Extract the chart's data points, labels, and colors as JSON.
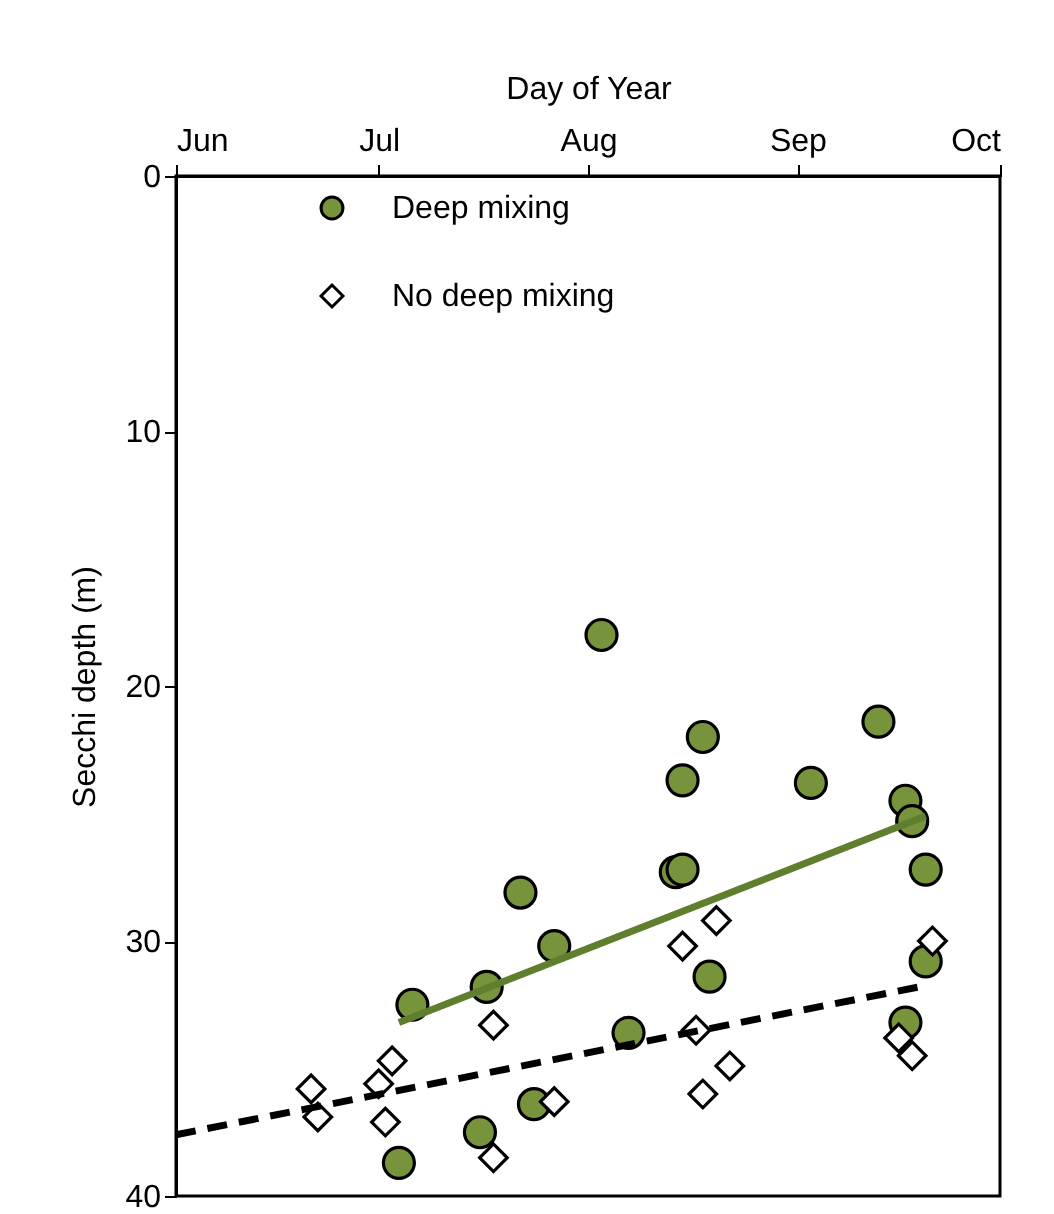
{
  "chart_data": {
    "type": "scatter",
    "xlabel": "Day of Year",
    "ylabel": "Secchi depth (m)",
    "xlim": [
      "--06-01",
      "--10-01"
    ],
    "xticks": [
      {
        "value": "--06-01",
        "label": "Jun"
      },
      {
        "value": "--07-01",
        "label": "Jul"
      },
      {
        "value": "--08-01",
        "label": "Aug"
      },
      {
        "value": "--09-01",
        "label": "Sep"
      },
      {
        "value": "--10-01",
        "label": "Oct"
      }
    ],
    "ylim": [
      40,
      0
    ],
    "yticks": [
      0,
      10,
      20,
      30,
      40
    ],
    "grid": false,
    "legend": "top left",
    "series": [
      {
        "name": "Deep mixing",
        "type": "scatter",
        "marker": "circle",
        "color": "#77933c",
        "x": [
          "--07-06",
          "--07-04",
          "--07-17",
          "--07-16",
          "--07-22",
          "--07-24",
          "--07-27",
          "--08-03",
          "--08-07",
          "--08-14",
          "--08-15",
          "--08-15",
          "--08-18",
          "--08-19",
          "--09-03",
          "--09-13",
          "--09-17",
          "--09-18",
          "--09-20",
          "--09-20",
          "--09-17"
        ],
        "values": [
          32.5,
          38.7,
          31.8,
          37.5,
          28.1,
          36.4,
          30.2,
          18.0,
          33.6,
          27.3,
          27.2,
          23.7,
          22.0,
          31.4,
          23.8,
          21.4,
          24.5,
          25.3,
          27.2,
          30.8,
          33.2
        ]
      },
      {
        "name": "No deep mixing",
        "type": "scatter",
        "marker": "diamond",
        "color": "#ffffff",
        "x": [
          "--06-21",
          "--06-22",
          "--07-01",
          "--07-03",
          "--07-02",
          "--07-18",
          "--07-27",
          "--07-18",
          "--08-20",
          "--08-15",
          "--08-17",
          "--08-22",
          "--08-18",
          "--09-21",
          "--09-16",
          "--09-18"
        ],
        "values": [
          35.8,
          36.9,
          35.6,
          34.7,
          37.1,
          33.3,
          36.3,
          38.5,
          29.2,
          30.2,
          33.5,
          34.9,
          36.0,
          30.0,
          33.8,
          34.5
        ]
      },
      {
        "type": "line",
        "line_style": "solid",
        "color": "#5f7f2f",
        "x": [
          "--07-04",
          "--09-20"
        ],
        "values": [
          33.2,
          25.1
        ]
      },
      {
        "type": "line",
        "line_style": "dashed",
        "color": "#000000",
        "x": [
          "--06-01",
          "--09-19"
        ],
        "values": [
          37.6,
          31.8
        ]
      }
    ]
  }
}
